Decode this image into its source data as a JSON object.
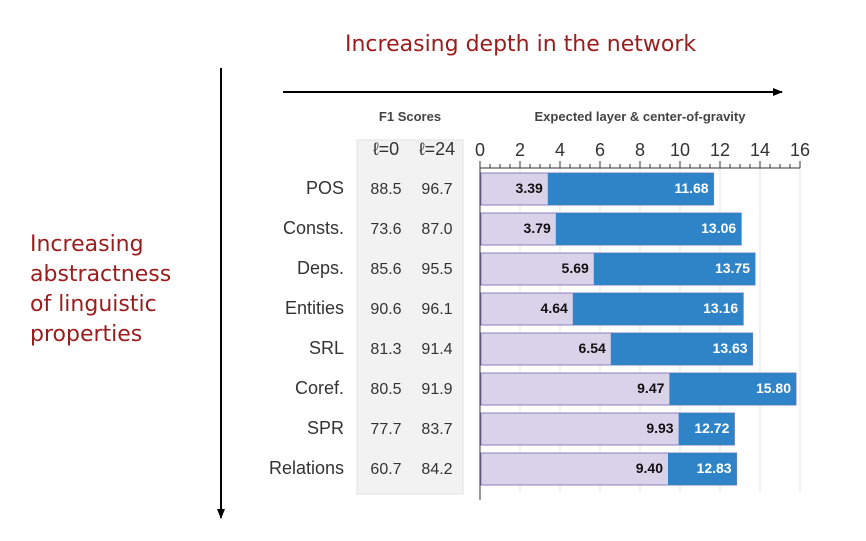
{
  "annotations": {
    "top_arrow_label": "Increasing depth in the network",
    "side_arrow_label_lines": [
      "Increasing",
      "abstractness",
      "of linguistic",
      "properties"
    ]
  },
  "colors": {
    "annotation_text": "#9b1c1c",
    "expected_bar": "#d9d3ea",
    "expected_bar_stroke": "#8e7cc3",
    "cog_bar": "#2e84c6",
    "arrow": "#000000"
  },
  "chart_data": {
    "type": "bar",
    "orientation": "horizontal",
    "table_header": "F1 Scores",
    "table_columns": [
      "ℓ=0",
      "ℓ=24"
    ],
    "chart_header": "Expected layer & center-of-gravity",
    "xlim": [
      0,
      16
    ],
    "xticks": [
      "0",
      "2",
      "4",
      "6",
      "8",
      "10",
      "12",
      "14",
      "16"
    ],
    "categories": [
      "POS",
      "Consts.",
      "Deps.",
      "Entities",
      "SRL",
      "Coref.",
      "SPR",
      "Relations"
    ],
    "f1_l0": [
      "88.5",
      "73.6",
      "85.6",
      "90.6",
      "81.3",
      "80.5",
      "77.7",
      "60.7"
    ],
    "f1_l24": [
      "96.7",
      "87.0",
      "95.5",
      "96.1",
      "91.4",
      "91.9",
      "83.7",
      "84.2"
    ],
    "series": [
      {
        "values": [
          3.39,
          3.79,
          5.69,
          4.64,
          6.54,
          9.47,
          9.93,
          9.4
        ]
      },
      {
        "values": [
          11.68,
          13.06,
          13.75,
          13.16,
          13.63,
          15.8,
          12.72,
          12.83
        ]
      }
    ],
    "expected_labels": [
      "3.39",
      "3.79",
      "5.69",
      "4.64",
      "6.54",
      "9.47",
      "9.93",
      "9.40"
    ],
    "cog_labels": [
      "11.68",
      "13.06",
      "13.75",
      "13.16",
      "13.63",
      "15.80",
      "12.72",
      "12.83"
    ],
    "grid": true
  }
}
